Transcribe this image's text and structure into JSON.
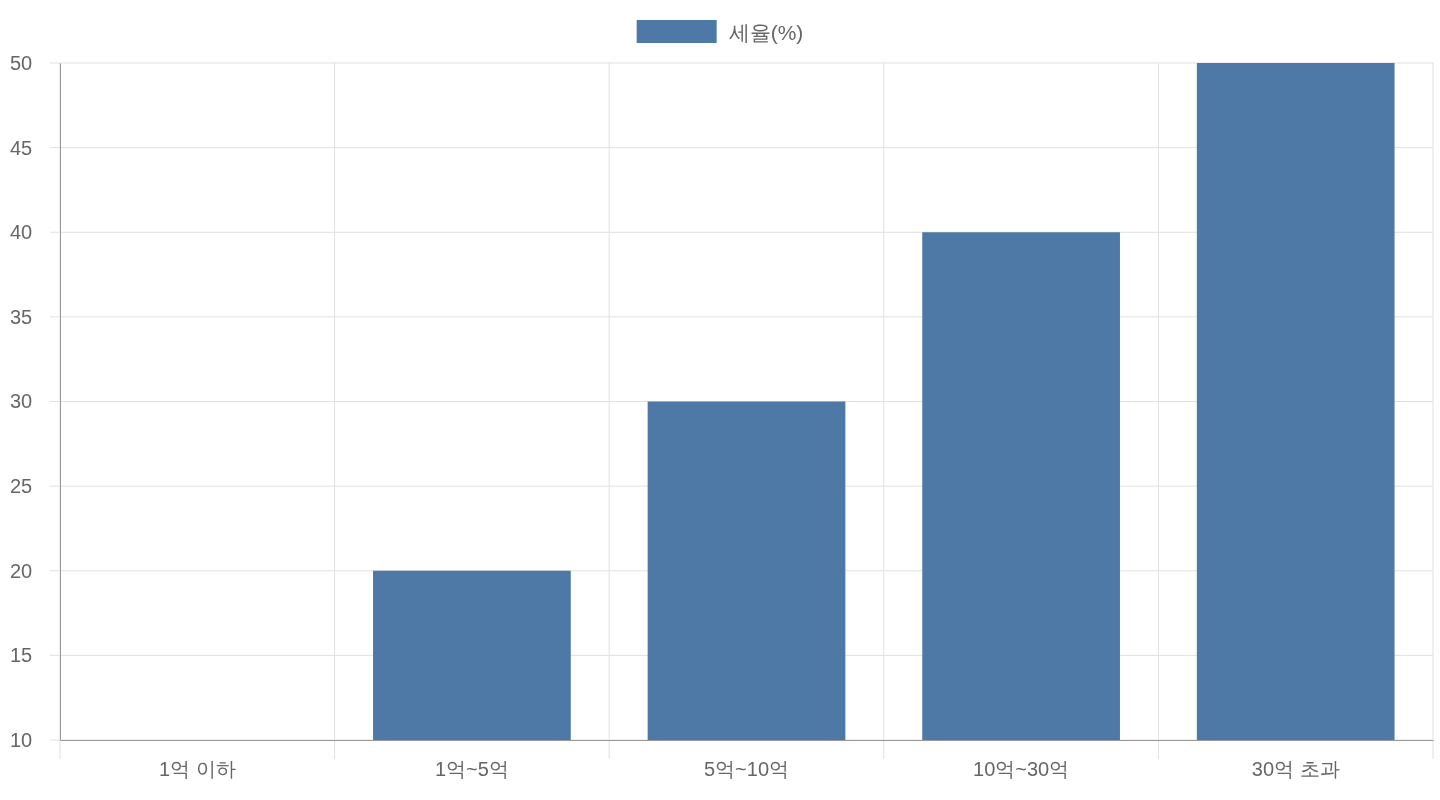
{
  "chart_data": {
    "type": "bar",
    "categories": [
      "1억 이하",
      "1억~5억",
      "5억~10억",
      "10억~30억",
      "30억 초과"
    ],
    "series": [
      {
        "name": "세율(%)",
        "color": "#4e79a7",
        "values": [
          10,
          20,
          30,
          40,
          50
        ]
      }
    ],
    "ylim": [
      10,
      50
    ],
    "yticks": [
      10,
      15,
      20,
      25,
      30,
      35,
      40,
      45,
      50
    ],
    "grid": true,
    "legend": "top"
  }
}
